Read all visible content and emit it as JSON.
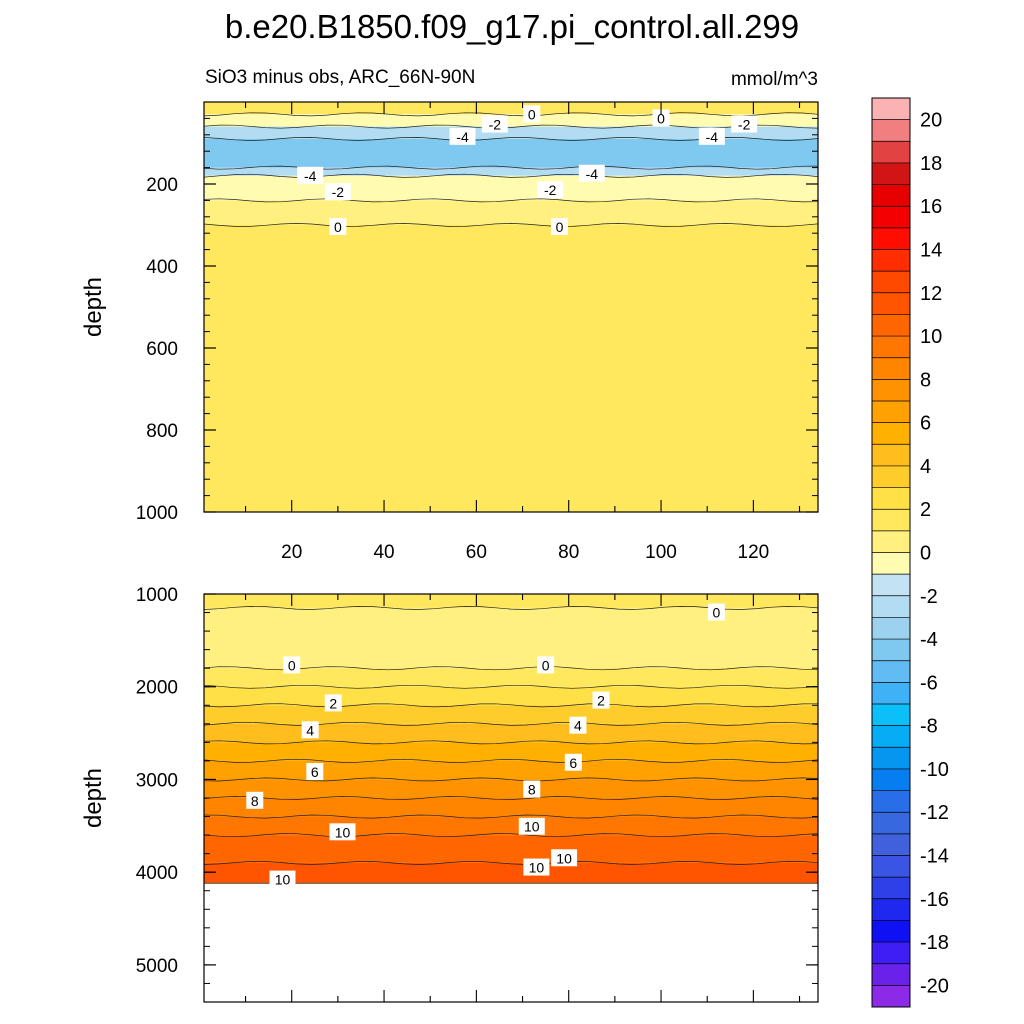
{
  "title": "b.e20.B1850.f09_g17.pi_control.all.299",
  "subtitle": "SiO3 minus obs, ARC_66N-90N",
  "units": "mmol/m^3",
  "colorbar": {
    "tick_labels": [
      "20",
      "18",
      "16",
      "14",
      "12",
      "10",
      "8",
      "6",
      "4",
      "2",
      "0",
      "-2",
      "-4",
      "-6",
      "-8",
      "-10",
      "-12",
      "-14",
      "-16",
      "-18",
      "-20"
    ],
    "colors": [
      "#fbb2b2",
      "#f17f7f",
      "#e34242",
      "#d11414",
      "#e60000",
      "#f40000",
      "#ff0d00",
      "#ff2d00",
      "#ff4800",
      "#ff5500",
      "#ff6600",
      "#ff7700",
      "#ff8400",
      "#ff9200",
      "#ffa100",
      "#ffb000",
      "#ffbe1e",
      "#ffcd2b",
      "#ffe046",
      "#ffe75e",
      "#fff080",
      "#fffcb2",
      "#c3e3f4",
      "#b1dcf2",
      "#9cd2f0",
      "#7fc8f0",
      "#60bcf2",
      "#3fb2f7",
      "#0bc0f8",
      "#07adf4",
      "#0597f0",
      "#067ef0",
      "#276ee8",
      "#3868e0",
      "#4060dc",
      "#3a55e3",
      "#2e40e8",
      "#1e28ee",
      "#1010f4",
      "#3e1ef4",
      "#6a22ea",
      "#8c2ae8"
    ]
  },
  "chart_data": [
    {
      "type": "contour",
      "xlabel": "",
      "ylabel": "depth",
      "xlim": [
        1,
        134
      ],
      "ylim": [
        1000,
        0
      ],
      "x_ticks": [
        "20",
        "40",
        "60",
        "80",
        "100",
        "120"
      ],
      "y_ticks": [
        "200",
        "400",
        "600",
        "800",
        "1000"
      ],
      "fill_bands": [
        {
          "depth_top": 0,
          "depth_bottom": 30,
          "value": 1
        },
        {
          "depth_top": 30,
          "depth_bottom": 60,
          "value": -1
        },
        {
          "depth_top": 60,
          "depth_bottom": 90,
          "value": -3
        },
        {
          "depth_top": 90,
          "depth_bottom": 160,
          "value": -5
        },
        {
          "depth_top": 160,
          "depth_bottom": 180,
          "value": -3
        },
        {
          "depth_top": 180,
          "depth_bottom": 240,
          "value": -1
        },
        {
          "depth_top": 240,
          "depth_bottom": 300,
          "value": -0.5
        },
        {
          "depth_top": 300,
          "depth_bottom": 1000,
          "value": 1
        }
      ],
      "contour_labels": [
        {
          "text": "0",
          "x": 72,
          "depth": 30
        },
        {
          "text": "0",
          "x": 100,
          "depth": 40
        },
        {
          "text": "-2",
          "x": 64,
          "depth": 55
        },
        {
          "text": "-2",
          "x": 118,
          "depth": 55
        },
        {
          "text": "-4",
          "x": 57,
          "depth": 85
        },
        {
          "text": "-4",
          "x": 111,
          "depth": 85
        },
        {
          "text": "-4",
          "x": 24,
          "depth": 180
        },
        {
          "text": "-4",
          "x": 85,
          "depth": 175
        },
        {
          "text": "-2",
          "x": 30,
          "depth": 220
        },
        {
          "text": "-2",
          "x": 76,
          "depth": 215
        },
        {
          "text": "0",
          "x": 30,
          "depth": 305
        },
        {
          "text": "0",
          "x": 78,
          "depth": 305
        }
      ]
    },
    {
      "type": "contour",
      "xlabel": "",
      "ylabel": "depth",
      "xlim": [
        1,
        134
      ],
      "ylim": [
        5400,
        1000
      ],
      "y_ticks": [
        "1000",
        "2000",
        "3000",
        "4000",
        "5000"
      ],
      "data_bottom_depth": 4120,
      "fill_bands": [
        {
          "depth_top": 1000,
          "depth_bottom": 1150,
          "value": 1
        },
        {
          "depth_top": 1150,
          "depth_bottom": 1800,
          "value": -0.5
        },
        {
          "depth_top": 1800,
          "depth_bottom": 2000,
          "value": 0.5
        },
        {
          "depth_top": 2000,
          "depth_bottom": 2200,
          "value": 1.5
        },
        {
          "depth_top": 2200,
          "depth_bottom": 2400,
          "value": 2.5
        },
        {
          "depth_top": 2400,
          "depth_bottom": 2600,
          "value": 3.5
        },
        {
          "depth_top": 2600,
          "depth_bottom": 2800,
          "value": 4.5
        },
        {
          "depth_top": 2800,
          "depth_bottom": 3000,
          "value": 5.5
        },
        {
          "depth_top": 3000,
          "depth_bottom": 3200,
          "value": 6.5
        },
        {
          "depth_top": 3200,
          "depth_bottom": 3400,
          "value": 7.5
        },
        {
          "depth_top": 3400,
          "depth_bottom": 3600,
          "value": 8.5
        },
        {
          "depth_top": 3600,
          "depth_bottom": 3900,
          "value": 9.5
        },
        {
          "depth_top": 3900,
          "depth_bottom": 4120,
          "value": 10.2
        }
      ],
      "contour_labels": [
        {
          "text": "0",
          "x": 112,
          "depth": 1200
        },
        {
          "text": "0",
          "x": 20,
          "depth": 1770
        },
        {
          "text": "0",
          "x": 75,
          "depth": 1770
        },
        {
          "text": "2",
          "x": 29,
          "depth": 2180
        },
        {
          "text": "2",
          "x": 87,
          "depth": 2150
        },
        {
          "text": "4",
          "x": 24,
          "depth": 2470
        },
        {
          "text": "4",
          "x": 82,
          "depth": 2420
        },
        {
          "text": "6",
          "x": 25,
          "depth": 2920
        },
        {
          "text": "6",
          "x": 81,
          "depth": 2820
        },
        {
          "text": "8",
          "x": 12,
          "depth": 3230
        },
        {
          "text": "8",
          "x": 72,
          "depth": 3110
        },
        {
          "text": "10",
          "x": 31,
          "depth": 3570
        },
        {
          "text": "10",
          "x": 72,
          "depth": 3510
        },
        {
          "text": "10",
          "x": 73,
          "depth": 3950
        },
        {
          "text": "10",
          "x": 79,
          "depth": 3850
        },
        {
          "text": "10",
          "x": 18,
          "depth": 4080
        }
      ]
    }
  ]
}
